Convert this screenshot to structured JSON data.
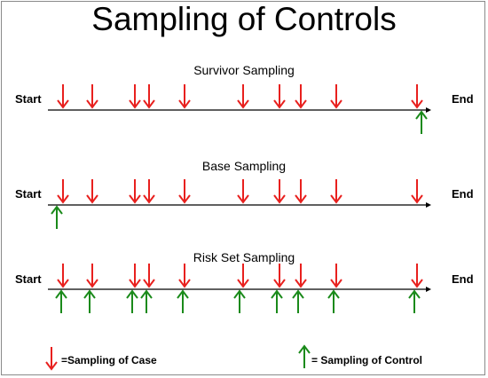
{
  "title": "Sampling of Controls",
  "colors": {
    "case": "#e8201e",
    "control": "#1a8a1a",
    "line": "#000000"
  },
  "case_positions": [
    71,
    104,
    152,
    168,
    208,
    274,
    315,
    339,
    379,
    470
  ],
  "panels": [
    {
      "name": "Survivor Sampling",
      "start_label": "Start",
      "end_label": "End",
      "controls": [
        475
      ]
    },
    {
      "name": "Base Sampling",
      "start_label": "Start",
      "end_label": "End",
      "controls": [
        64
      ]
    },
    {
      "name": "Risk Set Sampling",
      "start_label": "Start",
      "end_label": "End",
      "controls": [
        69,
        101,
        149,
        165,
        206,
        270,
        312,
        336,
        376,
        467
      ]
    }
  ],
  "legend": {
    "case_label": "=Sampling of Case",
    "control_label": "= Sampling of Control"
  }
}
